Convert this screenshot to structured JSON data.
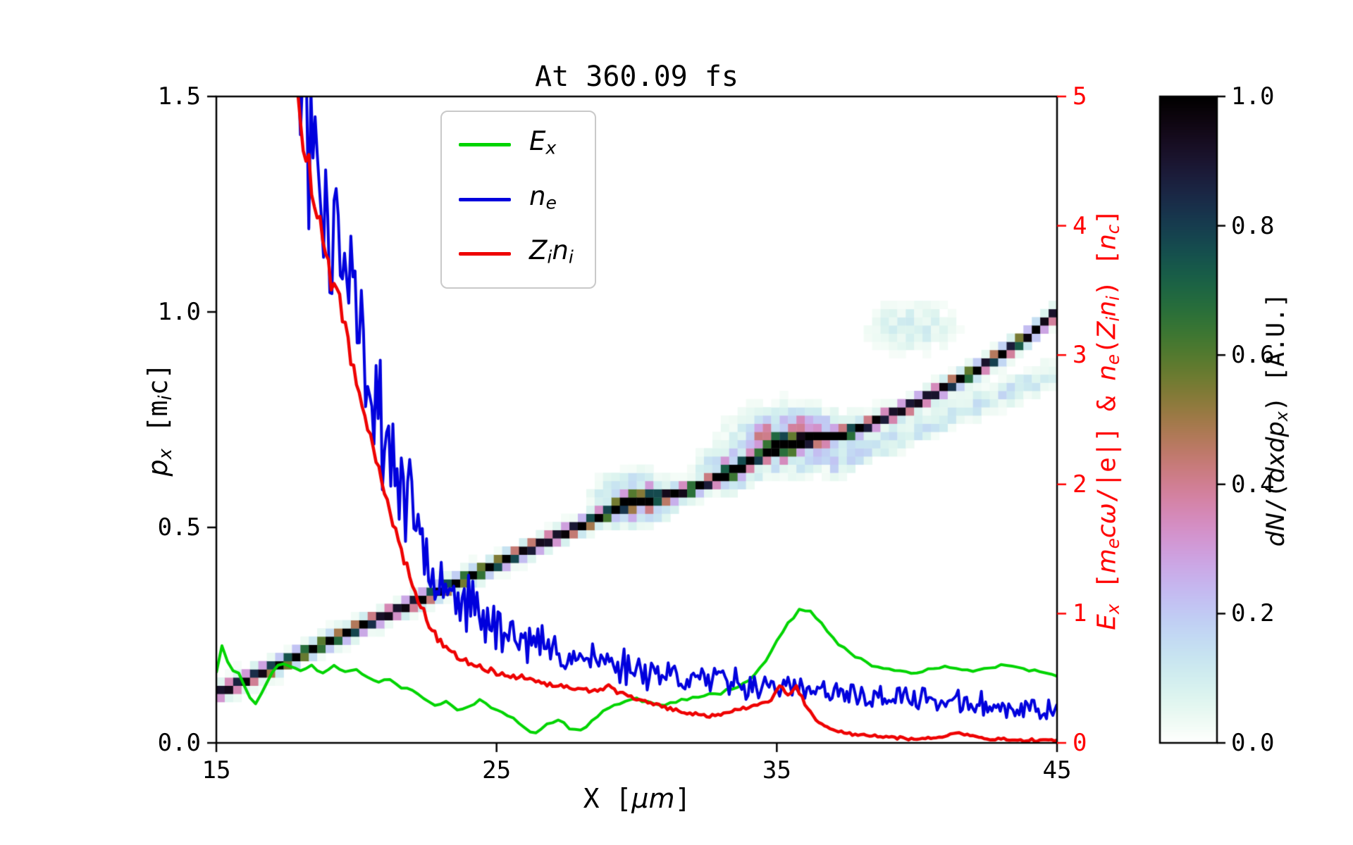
{
  "chart_data": {
    "type": "heatmap+line",
    "title": "At 360.09 fs",
    "xlabel": "X [μm]",
    "ylabel_left": "p_x [m_i c]",
    "ylabel_right": "E_x [m_e cω/|e|] & n_e(Z_i n_i) [n_c]",
    "colorbar_label": "dN/(dxdp_x) [A.U.]",
    "xlim": [
      15,
      45
    ],
    "ylim_left": [
      0.0,
      1.5
    ],
    "ylim_right": [
      0,
      5
    ],
    "x_ticks": [
      15,
      25,
      35,
      45
    ],
    "x_tick_labels": [
      "15",
      "25",
      "35",
      "45"
    ],
    "y_ticks_left": [
      0.0,
      0.5,
      1.0,
      1.5
    ],
    "y_tick_labels_left": [
      "0.0",
      "0.5",
      "1.0",
      "1.5"
    ],
    "y_ticks_right": [
      0,
      1,
      2,
      3,
      4,
      5
    ],
    "y_tick_labels_right": [
      "0",
      "1",
      "2",
      "3",
      "4",
      "5"
    ],
    "colorbar_ticks": [
      0.0,
      0.2,
      0.4,
      0.6,
      0.8,
      1.0
    ],
    "colorbar_tick_labels": [
      "0.0",
      "0.2",
      "0.4",
      "0.6",
      "0.8",
      "1.0"
    ],
    "right_axis_color": "#ff0000",
    "colormap": {
      "name": "cubehelix_r",
      "start": 0.5,
      "rot": -1.5,
      "hue": 1.0
    },
    "xlabel_segments": [
      {
        "t": "X ["
      },
      {
        "t": "μm",
        "i": 1
      },
      {
        "t": "]"
      }
    ],
    "ylabel_left_segments": [
      {
        "t": "p",
        "i": 1
      },
      {
        "t": "x",
        "i": 1,
        "sub": 1
      },
      {
        "t": " [m"
      },
      {
        "t": "i",
        "i": 1,
        "sub": 1
      },
      {
        "t": "c]"
      }
    ],
    "ylabel_right_segments": [
      {
        "t": "E",
        "i": 1
      },
      {
        "t": "x",
        "i": 1,
        "sub": 1
      },
      {
        "t": " ["
      },
      {
        "t": "m",
        "i": 1
      },
      {
        "t": "e",
        "i": 1,
        "sub": 1
      },
      {
        "t": "cω",
        "i": 1
      },
      {
        "t": "/|e|] & "
      },
      {
        "t": "n",
        "i": 1
      },
      {
        "t": "e",
        "i": 1,
        "sub": 1
      },
      {
        "t": "("
      },
      {
        "t": "Z",
        "i": 1
      },
      {
        "t": "i",
        "i": 1,
        "sub": 1
      },
      {
        "t": "n",
        "i": 1
      },
      {
        "t": "i",
        "i": 1,
        "sub": 1
      },
      {
        "t": ") ["
      },
      {
        "t": "n",
        "i": 1
      },
      {
        "t": "c",
        "i": 1,
        "sub": 1
      },
      {
        "t": "]"
      }
    ],
    "colorbar_label_segments": [
      {
        "t": "dN",
        "i": 1
      },
      {
        "t": "/("
      },
      {
        "t": "dxdp",
        "i": 1
      },
      {
        "t": "x",
        "i": 1,
        "sub": 1
      },
      {
        "t": ") [A.U.]"
      }
    ],
    "legend": {
      "items": [
        {
          "label": "E_x",
          "color": "#00d400",
          "segments": [
            {
              "t": "E",
              "i": 1
            },
            {
              "t": "x",
              "i": 1,
              "sub": 1
            }
          ]
        },
        {
          "label": "n_e",
          "color": "#0000dd",
          "segments": [
            {
              "t": "n",
              "i": 1
            },
            {
              "t": "e",
              "i": 1,
              "sub": 1
            }
          ]
        },
        {
          "label": "Z_i n_i",
          "color": "#ee0000",
          "segments": [
            {
              "t": "Z",
              "i": 1
            },
            {
              "t": "i",
              "i": 1,
              "sub": 1
            },
            {
              "t": "n",
              "i": 1
            },
            {
              "t": "i",
              "i": 1,
              "sub": 1
            }
          ]
        }
      ]
    },
    "series": [
      {
        "name": "E_x",
        "axis": "right",
        "color": "#00d400",
        "lw": 4,
        "step": 0.2,
        "seed": 11,
        "noise_abs": 0.015,
        "noise_rel": 0.0,
        "anchors": [
          [
            15,
            0.55
          ],
          [
            15.15,
            0.78
          ],
          [
            15.3,
            0.72
          ],
          [
            15.5,
            0.52
          ],
          [
            15.7,
            0.6
          ],
          [
            15.9,
            0.5
          ],
          [
            16.1,
            0.38
          ],
          [
            16.4,
            0.3
          ],
          [
            16.7,
            0.42
          ],
          [
            17.0,
            0.55
          ],
          [
            17.3,
            0.63
          ],
          [
            17.6,
            0.6
          ],
          [
            18.0,
            0.55
          ],
          [
            18.4,
            0.6
          ],
          [
            18.8,
            0.54
          ],
          [
            19.2,
            0.59
          ],
          [
            19.6,
            0.55
          ],
          [
            20.0,
            0.57
          ],
          [
            20.4,
            0.51
          ],
          [
            20.8,
            0.47
          ],
          [
            21.2,
            0.5
          ],
          [
            21.6,
            0.43
          ],
          [
            22.0,
            0.41
          ],
          [
            22.4,
            0.35
          ],
          [
            22.8,
            0.29
          ],
          [
            23.2,
            0.32
          ],
          [
            23.6,
            0.25
          ],
          [
            24.0,
            0.28
          ],
          [
            24.4,
            0.33
          ],
          [
            24.8,
            0.27
          ],
          [
            25.2,
            0.24
          ],
          [
            25.6,
            0.19
          ],
          [
            26.0,
            0.11
          ],
          [
            26.4,
            0.07
          ],
          [
            26.8,
            0.15
          ],
          [
            27.2,
            0.19
          ],
          [
            27.6,
            0.11
          ],
          [
            28.0,
            0.09
          ],
          [
            28.4,
            0.17
          ],
          [
            28.8,
            0.25
          ],
          [
            29.2,
            0.29
          ],
          [
            29.6,
            0.32
          ],
          [
            30.0,
            0.34
          ],
          [
            30.5,
            0.31
          ],
          [
            31.0,
            0.29
          ],
          [
            31.5,
            0.32
          ],
          [
            32.0,
            0.35
          ],
          [
            32.5,
            0.37
          ],
          [
            33.0,
            0.39
          ],
          [
            33.5,
            0.43
          ],
          [
            34.0,
            0.49
          ],
          [
            34.5,
            0.6
          ],
          [
            35.0,
            0.78
          ],
          [
            35.4,
            0.93
          ],
          [
            35.8,
            1.03
          ],
          [
            36.2,
            1.01
          ],
          [
            36.6,
            0.92
          ],
          [
            37.0,
            0.81
          ],
          [
            37.5,
            0.71
          ],
          [
            38.0,
            0.64
          ],
          [
            38.5,
            0.59
          ],
          [
            39.0,
            0.57
          ],
          [
            39.5,
            0.55
          ],
          [
            40.0,
            0.54
          ],
          [
            40.5,
            0.57
          ],
          [
            41.0,
            0.59
          ],
          [
            41.5,
            0.57
          ],
          [
            42.0,
            0.55
          ],
          [
            42.5,
            0.57
          ],
          [
            43.0,
            0.6
          ],
          [
            43.5,
            0.59
          ],
          [
            44.0,
            0.56
          ],
          [
            44.5,
            0.54
          ],
          [
            45.0,
            0.52
          ]
        ]
      },
      {
        "name": "n_e",
        "axis": "right",
        "color": "#0000dd",
        "lw": 4,
        "step": 0.075,
        "seed": 23,
        "noise_abs": 0.05,
        "noise_rel": 0.2,
        "anchors": [
          [
            15,
            40
          ],
          [
            16,
            24
          ],
          [
            16.6,
            15
          ],
          [
            17,
            10
          ],
          [
            17.3,
            7.2
          ],
          [
            17.6,
            5.8
          ],
          [
            18,
            5.0
          ],
          [
            18.4,
            4.6
          ],
          [
            18.8,
            4.2
          ],
          [
            19.2,
            3.9
          ],
          [
            19.6,
            3.6
          ],
          [
            20,
            3.2
          ],
          [
            20.5,
            2.8
          ],
          [
            21,
            2.4
          ],
          [
            21.5,
            2.05
          ],
          [
            22,
            1.75
          ],
          [
            22.5,
            1.5
          ],
          [
            23,
            1.32
          ],
          [
            23.5,
            1.18
          ],
          [
            24,
            1.06
          ],
          [
            24.5,
            0.97
          ],
          [
            25,
            0.9
          ],
          [
            25.5,
            0.85
          ],
          [
            26,
            0.8
          ],
          [
            26.5,
            0.76
          ],
          [
            27,
            0.72
          ],
          [
            27.5,
            0.69
          ],
          [
            28,
            0.66
          ],
          [
            28.5,
            0.64
          ],
          [
            29,
            0.62
          ],
          [
            29.5,
            0.6
          ],
          [
            30,
            0.58
          ],
          [
            30.5,
            0.56
          ],
          [
            31,
            0.54
          ],
          [
            31.5,
            0.52
          ],
          [
            32,
            0.5
          ],
          [
            32.5,
            0.49
          ],
          [
            33,
            0.48
          ],
          [
            33.5,
            0.47
          ],
          [
            34,
            0.46
          ],
          [
            34.5,
            0.45
          ],
          [
            35,
            0.44
          ],
          [
            35.5,
            0.42
          ],
          [
            36,
            0.4
          ],
          [
            36.5,
            0.39
          ],
          [
            37,
            0.38
          ],
          [
            37.5,
            0.37
          ],
          [
            38,
            0.36
          ],
          [
            38.5,
            0.355
          ],
          [
            39,
            0.35
          ],
          [
            39.5,
            0.345
          ],
          [
            40,
            0.34
          ],
          [
            40.5,
            0.33
          ],
          [
            41,
            0.32
          ],
          [
            41.5,
            0.31
          ],
          [
            42,
            0.3
          ],
          [
            42.5,
            0.29
          ],
          [
            43,
            0.28
          ],
          [
            43.5,
            0.27
          ],
          [
            44,
            0.26
          ],
          [
            44.5,
            0.255
          ],
          [
            45,
            0.25
          ]
        ]
      },
      {
        "name": "Z_i n_i",
        "axis": "right",
        "color": "#ee0000",
        "lw": 4.5,
        "step": 0.1,
        "seed": 5,
        "noise_abs": 0.012,
        "noise_rel": 0.03,
        "anchors": [
          [
            15,
            30
          ],
          [
            16,
            16
          ],
          [
            16.8,
            9
          ],
          [
            17.2,
            7
          ],
          [
            17.6,
            5.6
          ],
          [
            18,
            4.8
          ],
          [
            18.4,
            4.3
          ],
          [
            18.8,
            3.9
          ],
          [
            19.1,
            3.55
          ],
          [
            19.4,
            3.45
          ],
          [
            19.7,
            3.1
          ],
          [
            20,
            2.8
          ],
          [
            20.3,
            2.55
          ],
          [
            20.6,
            2.3
          ],
          [
            21,
            1.95
          ],
          [
            21.4,
            1.65
          ],
          [
            21.8,
            1.35
          ],
          [
            22.2,
            1.1
          ],
          [
            22.6,
            0.92
          ],
          [
            23,
            0.78
          ],
          [
            23.4,
            0.7
          ],
          [
            23.8,
            0.64
          ],
          [
            24.2,
            0.6
          ],
          [
            24.6,
            0.57
          ],
          [
            25,
            0.54
          ],
          [
            25.5,
            0.52
          ],
          [
            26,
            0.5
          ],
          [
            26.5,
            0.47
          ],
          [
            27,
            0.44
          ],
          [
            27.5,
            0.44
          ],
          [
            28,
            0.42
          ],
          [
            28.5,
            0.4
          ],
          [
            29,
            0.44
          ],
          [
            29.3,
            0.4
          ],
          [
            29.6,
            0.37
          ],
          [
            30,
            0.34
          ],
          [
            30.5,
            0.31
          ],
          [
            31,
            0.27
          ],
          [
            31.5,
            0.24
          ],
          [
            32,
            0.22
          ],
          [
            32.5,
            0.21
          ],
          [
            33,
            0.22
          ],
          [
            33.5,
            0.25
          ],
          [
            34,
            0.28
          ],
          [
            34.4,
            0.3
          ],
          [
            34.8,
            0.34
          ],
          [
            35.1,
            0.44
          ],
          [
            35.4,
            0.36
          ],
          [
            35.7,
            0.44
          ],
          [
            36,
            0.3
          ],
          [
            36.4,
            0.18
          ],
          [
            36.8,
            0.12
          ],
          [
            37.2,
            0.09
          ],
          [
            37.6,
            0.07
          ],
          [
            38,
            0.06
          ],
          [
            38.5,
            0.05
          ],
          [
            39,
            0.04
          ],
          [
            39.5,
            0.035
          ],
          [
            40,
            0.03
          ],
          [
            40.5,
            0.035
          ],
          [
            41,
            0.05
          ],
          [
            41.4,
            0.08
          ],
          [
            41.8,
            0.06
          ],
          [
            42.2,
            0.04
          ],
          [
            42.6,
            0.03
          ],
          [
            43,
            0.03
          ],
          [
            43.5,
            0.025
          ],
          [
            44,
            0.02
          ],
          [
            44.5,
            0.02
          ],
          [
            45,
            0.02
          ]
        ]
      }
    ],
    "heatmap": {
      "description": "ion phase-space dN/(dxdp_x), dark diagonal band rising from (15,0.12) to (45,1.0)",
      "cell_dx": 0.3,
      "cell_dp": 0.019,
      "core_width": 0.013,
      "halo_amp": 0.1,
      "halo_width": 0.034,
      "seed": 99,
      "ridge": [
        [
          15,
          0.115
        ],
        [
          16,
          0.145
        ],
        [
          17,
          0.175
        ],
        [
          18,
          0.205
        ],
        [
          19,
          0.235
        ],
        [
          20,
          0.265
        ],
        [
          21,
          0.295
        ],
        [
          22,
          0.325
        ],
        [
          23,
          0.355
        ],
        [
          24,
          0.385
        ],
        [
          25,
          0.415
        ],
        [
          26,
          0.445
        ],
        [
          27,
          0.475
        ],
        [
          28,
          0.505
        ],
        [
          29,
          0.535
        ],
        [
          29.6,
          0.553
        ],
        [
          30.2,
          0.565
        ],
        [
          30.8,
          0.572
        ],
        [
          31.4,
          0.578
        ],
        [
          32,
          0.59
        ],
        [
          32.6,
          0.605
        ],
        [
          33.2,
          0.625
        ],
        [
          33.8,
          0.645
        ],
        [
          34.4,
          0.665
        ],
        [
          35,
          0.685
        ],
        [
          35.6,
          0.7
        ],
        [
          36.2,
          0.71
        ],
        [
          36.8,
          0.712
        ],
        [
          37.4,
          0.718
        ],
        [
          38,
          0.73
        ],
        [
          39,
          0.76
        ],
        [
          40,
          0.79
        ],
        [
          41,
          0.825
        ],
        [
          42,
          0.86
        ],
        [
          43,
          0.9
        ],
        [
          44,
          0.945
        ],
        [
          45,
          1.0
        ]
      ],
      "blobs": [
        {
          "x": 29.9,
          "p": 0.565,
          "rx": 1.0,
          "rp": 0.045,
          "a": 0.5
        },
        {
          "x": 33.3,
          "p": 0.635,
          "rx": 0.8,
          "rp": 0.04,
          "a": 0.35
        },
        {
          "x": 35.5,
          "p": 0.705,
          "rx": 1.5,
          "rp": 0.055,
          "a": 0.6
        },
        {
          "x": 39.8,
          "p": 0.965,
          "rx": 1.3,
          "rp": 0.045,
          "a": 0.15
        }
      ],
      "streaks": [
        {
          "x1": 36.8,
          "p1": 0.64,
          "x2": 45,
          "p2": 0.86,
          "w": 0.028,
          "a": 0.15
        }
      ]
    }
  }
}
